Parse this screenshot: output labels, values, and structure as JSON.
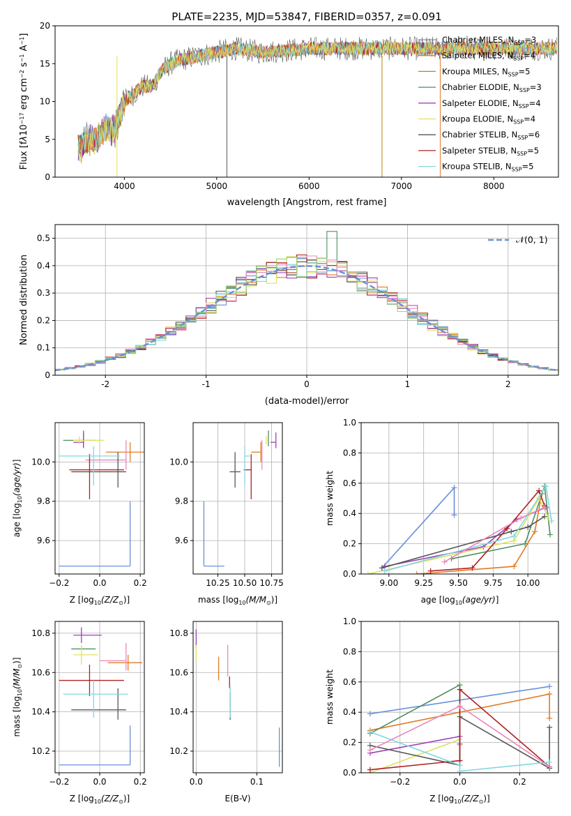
{
  "chart_data": [
    {
      "id": "spectrum",
      "type": "line",
      "title": "PLATE=2235, MJD=53847, FIBERID=0357, z=0.091",
      "xlabel": "wavelength [Angstrom, rest frame]",
      "ylabel_html": "Flux [f<tspan font-style='italic'>λ</tspan>10<tspan baseline-shift='super' font-size='8'>−17</tspan> erg cm<tspan baseline-shift='super' font-size='8'>−2</tspan> s<tspan baseline-shift='super' font-size='8'>−1</tspan> A<tspan baseline-shift='super' font-size='8'>−1</tspan>]",
      "xlim": [
        3250,
        8700
      ],
      "ylim": [
        0,
        20
      ],
      "xticks": [
        4000,
        5000,
        6000,
        7000,
        8000
      ],
      "yticks": [
        0,
        5,
        10,
        15,
        20
      ],
      "grid": false,
      "legend_placement": "upper-right",
      "profile": {
        "wavelength": [
          3500,
          3600,
          3700,
          3800,
          3900,
          4000,
          4100,
          4200,
          4300,
          4400,
          4500,
          4600,
          4800,
          5000,
          5200,
          5500,
          6000,
          6500,
          7000,
          7500,
          8000,
          8500
        ],
        "flux": [
          3.5,
          5.0,
          5.0,
          6.5,
          6.0,
          10.0,
          11.0,
          12.0,
          12.0,
          14.0,
          15.0,
          15.5,
          16.0,
          16.5,
          17.0,
          16.5,
          17.0,
          17.0,
          17.0,
          17.0,
          17.0,
          17.0
        ]
      },
      "series": [
        {
          "name": "Chabrier MILES, N",
          "sub": "SSP",
          "n": "=3",
          "color": "#6a8fd8"
        },
        {
          "name": "Salpeter MILES, N",
          "sub": "SSP",
          "n": "=4",
          "color": "#e07b24"
        },
        {
          "name": "Kroupa MILES, N",
          "sub": "SSP",
          "n": "=5",
          "color": "#b8860b"
        },
        {
          "name": "Chabrier ELODIE, N",
          "sub": "SSP",
          "n": "=3",
          "color": "#4f8f5f"
        },
        {
          "name": "Salpeter ELODIE, N",
          "sub": "SSP",
          "n": "=4",
          "color": "#a040b8"
        },
        {
          "name": "Kroupa ELODIE, N",
          "sub": "SSP",
          "n": "=4",
          "color": "#e0e060"
        },
        {
          "name": "Chabrier STELIB, N",
          "sub": "SSP",
          "n": "=6",
          "color": "#555555"
        },
        {
          "name": "Salpeter STELIB, N",
          "sub": "SSP",
          "n": "=5",
          "color": "#b02020"
        },
        {
          "name": "Kroupa STELIB, N",
          "sub": "SSP",
          "n": "=5",
          "color": "#80d8e0"
        }
      ]
    },
    {
      "id": "residuals",
      "type": "histogram",
      "xlabel": "(data-model)/error",
      "ylabel": "Normed distribution",
      "xlim": [
        -2.5,
        2.5
      ],
      "ylim": [
        0,
        0.55
      ],
      "xticks": [
        -2,
        -1,
        0,
        1,
        2
      ],
      "yticks": [
        0.0,
        0.1,
        0.2,
        0.3,
        0.4,
        0.5
      ],
      "grid": true,
      "legend_placement": "upper-right",
      "reference": {
        "label": "𝒩(0, 1)",
        "mu": 0,
        "sigma": 1,
        "color": "#6a8fd8"
      },
      "bin_width": 0.1,
      "series_colors": [
        "#6a8fd8",
        "#e07b24",
        "#4f8f5f",
        "#a040b8",
        "#e0e060",
        "#555555",
        "#b02020",
        "#80d8e0",
        "#e888b8",
        "#98d870"
      ]
    },
    {
      "id": "age-vs-Z",
      "type": "scatter",
      "xlabel": "Z [log",
      "xlabel_sub": "10",
      "xlabel_rest": "(Z/Z",
      "xlabel_sun": "⊙",
      "xlabel_end": ")]",
      "ylabel_plain": "age  [log",
      "ylabel_sub": "10",
      "ylabel_ital": "(age/yr)",
      "ylabel_end": "]",
      "xlim": [
        -0.22,
        0.22
      ],
      "ylim": [
        9.43,
        10.2
      ],
      "xticks": [
        -0.2,
        0.0,
        0.2
      ],
      "xticklabels": [
        "−0.2",
        "0.0",
        "0.2"
      ],
      "yticks": [
        9.6,
        9.8,
        10.0
      ],
      "yticklabels": [
        "9.6",
        "9.8",
        "10.0"
      ],
      "grid": true,
      "points": [
        {
          "x": 0.15,
          "y": 9.47,
          "xl": 0.35,
          "xr": 0.0,
          "yl": 0.0,
          "yu": 0.33,
          "color": "#6a8fd8"
        },
        {
          "x": 0.15,
          "y": 10.05,
          "xl": 0.12,
          "xr": 0.07,
          "yl": 0.05,
          "yu": 0.05,
          "color": "#e07b24"
        },
        {
          "x": 0.13,
          "y": 10.01,
          "xl": 0.2,
          "xr": 0.0,
          "yl": 0.05,
          "yu": 0.1,
          "color": "#e888b8"
        },
        {
          "x": -0.08,
          "y": 10.11,
          "xl": 0.1,
          "xr": 0.06,
          "yl": 0.03,
          "yu": 0.05,
          "color": "#4f8f5f"
        },
        {
          "x": -0.08,
          "y": 10.1,
          "xl": 0.05,
          "xr": 0.0,
          "yl": 0.03,
          "yu": 0.05,
          "color": "#a040b8"
        },
        {
          "x": -0.1,
          "y": 10.11,
          "xl": 0.03,
          "xr": 0.12,
          "yl": 0.02,
          "yu": 0.02,
          "color": "#e0e060"
        },
        {
          "x": 0.09,
          "y": 9.95,
          "xl": 0.23,
          "xr": 0.04,
          "yl": 0.08,
          "yu": 0.1,
          "color": "#555555"
        },
        {
          "x": -0.05,
          "y": 9.96,
          "xl": 0.1,
          "xr": 0.17,
          "yl": 0.15,
          "yu": 0.08,
          "color": "#b02020"
        },
        {
          "x": -0.03,
          "y": 10.03,
          "xl": 0.17,
          "xr": 0.13,
          "yl": 0.15,
          "yu": 0.05,
          "color": "#80d8e0"
        }
      ]
    },
    {
      "id": "age-vs-mass",
      "type": "scatter",
      "xlabel": "mass [log",
      "xlabel_sub": "10",
      "xlabel_rest": "(M/M",
      "xlabel_sun": "⊙",
      "xlabel_end": ")]",
      "xlim": [
        10.02,
        10.85
      ],
      "ylim": [
        9.43,
        10.2
      ],
      "xticks": [
        10.25,
        10.5,
        10.75
      ],
      "xticklabels": [
        "10.25",
        "10.50",
        "10.75"
      ],
      "yticks": [
        9.6,
        9.8,
        10.0
      ],
      "yticklabels": [
        "9.6",
        "9.8",
        "10.0"
      ],
      "grid": true,
      "points": [
        {
          "x": 10.12,
          "y": 9.47,
          "xl": 0.0,
          "xr": 0.19,
          "yl": 0.0,
          "yu": 0.33,
          "color": "#6a8fd8"
        },
        {
          "x": 10.65,
          "y": 10.05,
          "xl": 0.09,
          "xr": 0.0,
          "yl": 0.05,
          "yu": 0.05,
          "color": "#e07b24"
        },
        {
          "x": 10.66,
          "y": 10.01,
          "xl": 0.0,
          "xr": 0.0,
          "yl": 0.05,
          "yu": 0.1,
          "color": "#e888b8"
        },
        {
          "x": 10.72,
          "y": 10.11,
          "xl": 0.0,
          "xr": 0.0,
          "yl": 0.03,
          "yu": 0.05,
          "color": "#4f8f5f"
        },
        {
          "x": 10.79,
          "y": 10.1,
          "xl": 0.05,
          "xr": 0.0,
          "yl": 0.03,
          "yu": 0.05,
          "color": "#a040b8"
        },
        {
          "x": 10.7,
          "y": 10.11,
          "xl": 0.0,
          "xr": 0.0,
          "yl": 0.02,
          "yu": 0.02,
          "color": "#e0e060"
        },
        {
          "x": 10.41,
          "y": 9.95,
          "xl": 0.05,
          "xr": 0.05,
          "yl": 0.08,
          "yu": 0.1,
          "color": "#555555"
        },
        {
          "x": 10.56,
          "y": 9.96,
          "xl": 0.07,
          "xr": 0.0,
          "yl": 0.15,
          "yu": 0.08,
          "color": "#b02020"
        },
        {
          "x": 10.5,
          "y": 10.03,
          "xl": 0.0,
          "xr": 0.05,
          "yl": 0.15,
          "yu": 0.05,
          "color": "#80d8e0"
        }
      ]
    },
    {
      "id": "mass-weight-vs-age",
      "type": "line",
      "xlabel_plain": "age  [log",
      "xlabel_sub": "10",
      "xlabel_ital": "(age/yr)",
      "xlabel_end": "]",
      "ylabel": "mass weight",
      "xlim": [
        8.8,
        10.22
      ],
      "ylim": [
        0.0,
        1.0
      ],
      "xticks": [
        9.0,
        9.25,
        9.5,
        9.75,
        10.0
      ],
      "xticklabels": [
        "9.00",
        "9.25",
        "9.50",
        "9.75",
        "10.00"
      ],
      "yticks": [
        0.0,
        0.2,
        0.4,
        0.6,
        0.8,
        1.0
      ],
      "yticklabels": [
        "0.0",
        "0.2",
        "0.4",
        "0.6",
        "0.8",
        "1.0"
      ],
      "grid": true,
      "series": [
        {
          "color": "#6a8fd8",
          "x": [
            8.95,
            9.47,
            9.47
          ],
          "y": [
            0.04,
            0.57,
            0.39
          ]
        },
        {
          "color": "#e07b24",
          "x": [
            9.2,
            9.9,
            10.05,
            10.1
          ],
          "y": [
            0.0,
            0.05,
            0.28,
            0.53
          ]
        },
        {
          "color": "#4f8f5f",
          "x": [
            9.45,
            9.98,
            10.12,
            10.16
          ],
          "y": [
            0.1,
            0.2,
            0.58,
            0.26
          ]
        },
        {
          "color": "#a040b8",
          "x": [
            8.97,
            9.68,
            9.92,
            10.13
          ],
          "y": [
            0.05,
            0.18,
            0.36,
            0.44
          ]
        },
        {
          "color": "#e0e060",
          "x": [
            8.85,
            9.9,
            10.08,
            10.15
          ],
          "y": [
            0.0,
            0.22,
            0.5,
            0.37
          ]
        },
        {
          "color": "#555555",
          "x": [
            8.95,
            9.88,
            10.0,
            10.12
          ],
          "y": [
            0.04,
            0.28,
            0.31,
            0.38
          ]
        },
        {
          "color": "#b02020",
          "x": [
            9.3,
            9.6,
            9.85,
            10.08,
            10.12
          ],
          "y": [
            0.02,
            0.04,
            0.3,
            0.55,
            0.45
          ]
        },
        {
          "color": "#80d8e0",
          "x": [
            8.97,
            9.9,
            10.13,
            10.17
          ],
          "y": [
            0.02,
            0.25,
            0.58,
            0.35
          ]
        },
        {
          "color": "#e888b8",
          "x": [
            9.4,
            9.95,
            10.12
          ],
          "y": [
            0.08,
            0.37,
            0.44
          ]
        }
      ]
    },
    {
      "id": "mass-vs-Z",
      "type": "scatter",
      "xlabel": "Z [log",
      "xlabel_sub": "10",
      "xlabel_rest": "(Z/Z",
      "xlabel_sun": "⊙",
      "xlabel_end": ")]",
      "ylabel": "mass [log",
      "ylabel_sub": "10",
      "ylabel_rest": "(M/M",
      "ylabel_sun": "⊙",
      "ylabel_end": ")]",
      "xlim": [
        -0.22,
        0.22
      ],
      "ylim": [
        10.09,
        10.86
      ],
      "xticks": [
        -0.2,
        0.0,
        0.2
      ],
      "xticklabels": [
        "−0.2",
        "0.0",
        "0.2"
      ],
      "yticks": [
        10.2,
        10.4,
        10.6,
        10.8
      ],
      "yticklabels": [
        "10.2",
        "10.4",
        "10.6",
        "10.8"
      ],
      "grid": true,
      "points": [
        {
          "x": 0.15,
          "y": 10.13,
          "xl": 0.35,
          "xr": 0.0,
          "yl": 0.0,
          "yu": 0.2,
          "color": "#6a8fd8"
        },
        {
          "x": 0.14,
          "y": 10.65,
          "xl": 0.1,
          "xr": 0.07,
          "yl": 0.04,
          "yu": 0.04,
          "color": "#e07b24"
        },
        {
          "x": 0.13,
          "y": 10.66,
          "xl": 0.13,
          "xr": 0.0,
          "yl": 0.05,
          "yu": 0.09,
          "color": "#e888b8"
        },
        {
          "x": -0.08,
          "y": 10.72,
          "xl": 0.06,
          "xr": 0.06,
          "yl": 0.0,
          "yu": 0.0,
          "color": "#4f8f5f"
        },
        {
          "x": -0.09,
          "y": 10.79,
          "xl": 0.04,
          "xr": 0.1,
          "yl": 0.04,
          "yu": 0.04,
          "color": "#a040b8"
        },
        {
          "x": -0.09,
          "y": 10.69,
          "xl": 0.04,
          "xr": 0.08,
          "yl": 0.05,
          "yu": 0.05,
          "color": "#e0e060"
        },
        {
          "x": 0.09,
          "y": 10.41,
          "xl": 0.23,
          "xr": 0.04,
          "yl": 0.05,
          "yu": 0.11,
          "color": "#555555"
        },
        {
          "x": -0.05,
          "y": 10.56,
          "xl": 0.15,
          "xr": 0.17,
          "yl": 0.08,
          "yu": 0.08,
          "color": "#b02020"
        },
        {
          "x": -0.03,
          "y": 10.49,
          "xl": 0.15,
          "xr": 0.17,
          "yl": 0.12,
          "yu": 0.07,
          "color": "#80d8e0"
        }
      ]
    },
    {
      "id": "mass-vs-EBV",
      "type": "scatter",
      "xlabel": "E(B-V)",
      "xlim": [
        -0.005,
        0.142
      ],
      "ylim": [
        10.09,
        10.86
      ],
      "xticks": [
        0.0,
        0.1
      ],
      "xticklabels": [
        "0.0",
        "0.1"
      ],
      "yticks": [
        10.2,
        10.4,
        10.6,
        10.8
      ],
      "yticklabels": [
        "10.2",
        "10.4",
        "10.6",
        "10.8"
      ],
      "grid": true,
      "points": [
        {
          "x": 0.137,
          "y": 10.22,
          "xl": 0.0,
          "xr": 0.0,
          "yl": 0.1,
          "yu": 0.1,
          "color": "#6a8fd8"
        },
        {
          "x": 0.037,
          "y": 10.62,
          "xl": 0.0,
          "xr": 0.0,
          "yl": 0.06,
          "yu": 0.06,
          "color": "#e07b24"
        },
        {
          "x": 0.052,
          "y": 10.66,
          "xl": 0.0,
          "xr": 0.0,
          "yl": 0.08,
          "yu": 0.08,
          "color": "#e888b8"
        },
        {
          "x": 0.0,
          "y": 10.77,
          "xl": 0.0,
          "xr": 0.0,
          "yl": 0.05,
          "yu": 0.05,
          "color": "#a040b8"
        },
        {
          "x": 0.0,
          "y": 10.7,
          "xl": 0.0,
          "xr": 0.0,
          "yl": 0.04,
          "yu": 0.04,
          "color": "#e0e060"
        },
        {
          "x": 0.056,
          "y": 10.43,
          "xl": 0.0,
          "xr": 0.0,
          "yl": 0.07,
          "yu": 0.07,
          "color": "#555555"
        },
        {
          "x": 0.055,
          "y": 10.55,
          "xl": 0.0,
          "xr": 0.0,
          "yl": 0.03,
          "yu": 0.03,
          "color": "#b02020"
        },
        {
          "x": 0.056,
          "y": 10.45,
          "xl": 0.0,
          "xr": 0.0,
          "yl": 0.08,
          "yu": 0.08,
          "color": "#80d8e0"
        }
      ]
    },
    {
      "id": "mass-weight-vs-Z",
      "type": "line",
      "xlabel": "Z [log",
      "xlabel_sub": "10",
      "xlabel_rest": "(Z/Z",
      "xlabel_sun": "⊙",
      "xlabel_end": ")]",
      "ylabel": "mass weight",
      "xlim": [
        -0.33,
        0.33
      ],
      "ylim": [
        0.0,
        1.0
      ],
      "xticks": [
        -0.2,
        0.0,
        0.2
      ],
      "xticklabels": [
        "−0.2",
        "0.0",
        "0.2"
      ],
      "yticks": [
        0.0,
        0.2,
        0.4,
        0.6,
        0.8,
        1.0
      ],
      "yticklabels": [
        "0.0",
        "0.2",
        "0.4",
        "0.6",
        "0.8",
        "1.0"
      ],
      "grid": true,
      "series": [
        {
          "color": "#6a8fd8",
          "x": [
            -0.3,
            0.3
          ],
          "y": [
            0.39,
            0.57
          ]
        },
        {
          "color": "#e07b24",
          "x": [
            -0.3,
            0.3,
            0.3
          ],
          "y": [
            0.28,
            0.52,
            0.36
          ]
        },
        {
          "color": "#4f8f5f",
          "x": [
            -0.3,
            0.0,
            0.0
          ],
          "y": [
            0.26,
            0.58,
            0.08
          ]
        },
        {
          "color": "#a040b8",
          "x": [
            -0.3,
            0.0,
            0.0
          ],
          "y": [
            0.13,
            0.24,
            0.19
          ]
        },
        {
          "color": "#e0e060",
          "x": [
            -0.3,
            0.0,
            0.0
          ],
          "y": [
            0.0,
            0.22,
            0.18
          ]
        },
        {
          "color": "#555555",
          "x": [
            -0.3,
            0.0,
            0.0,
            0.3,
            0.3
          ],
          "y": [
            0.18,
            0.05,
            0.37,
            0.03,
            0.3
          ]
        },
        {
          "color": "#b02020",
          "x": [
            -0.3,
            0.0,
            0.0,
            0.3
          ],
          "y": [
            0.02,
            0.08,
            0.55,
            0.04
          ]
        },
        {
          "color": "#80d8e0",
          "x": [
            -0.3,
            0.0,
            0.0,
            0.3
          ],
          "y": [
            0.27,
            0.05,
            0.01,
            0.07
          ]
        },
        {
          "color": "#e888b8",
          "x": [
            -0.3,
            0.0,
            0.3
          ],
          "y": [
            0.15,
            0.44,
            0.04
          ]
        }
      ]
    }
  ]
}
